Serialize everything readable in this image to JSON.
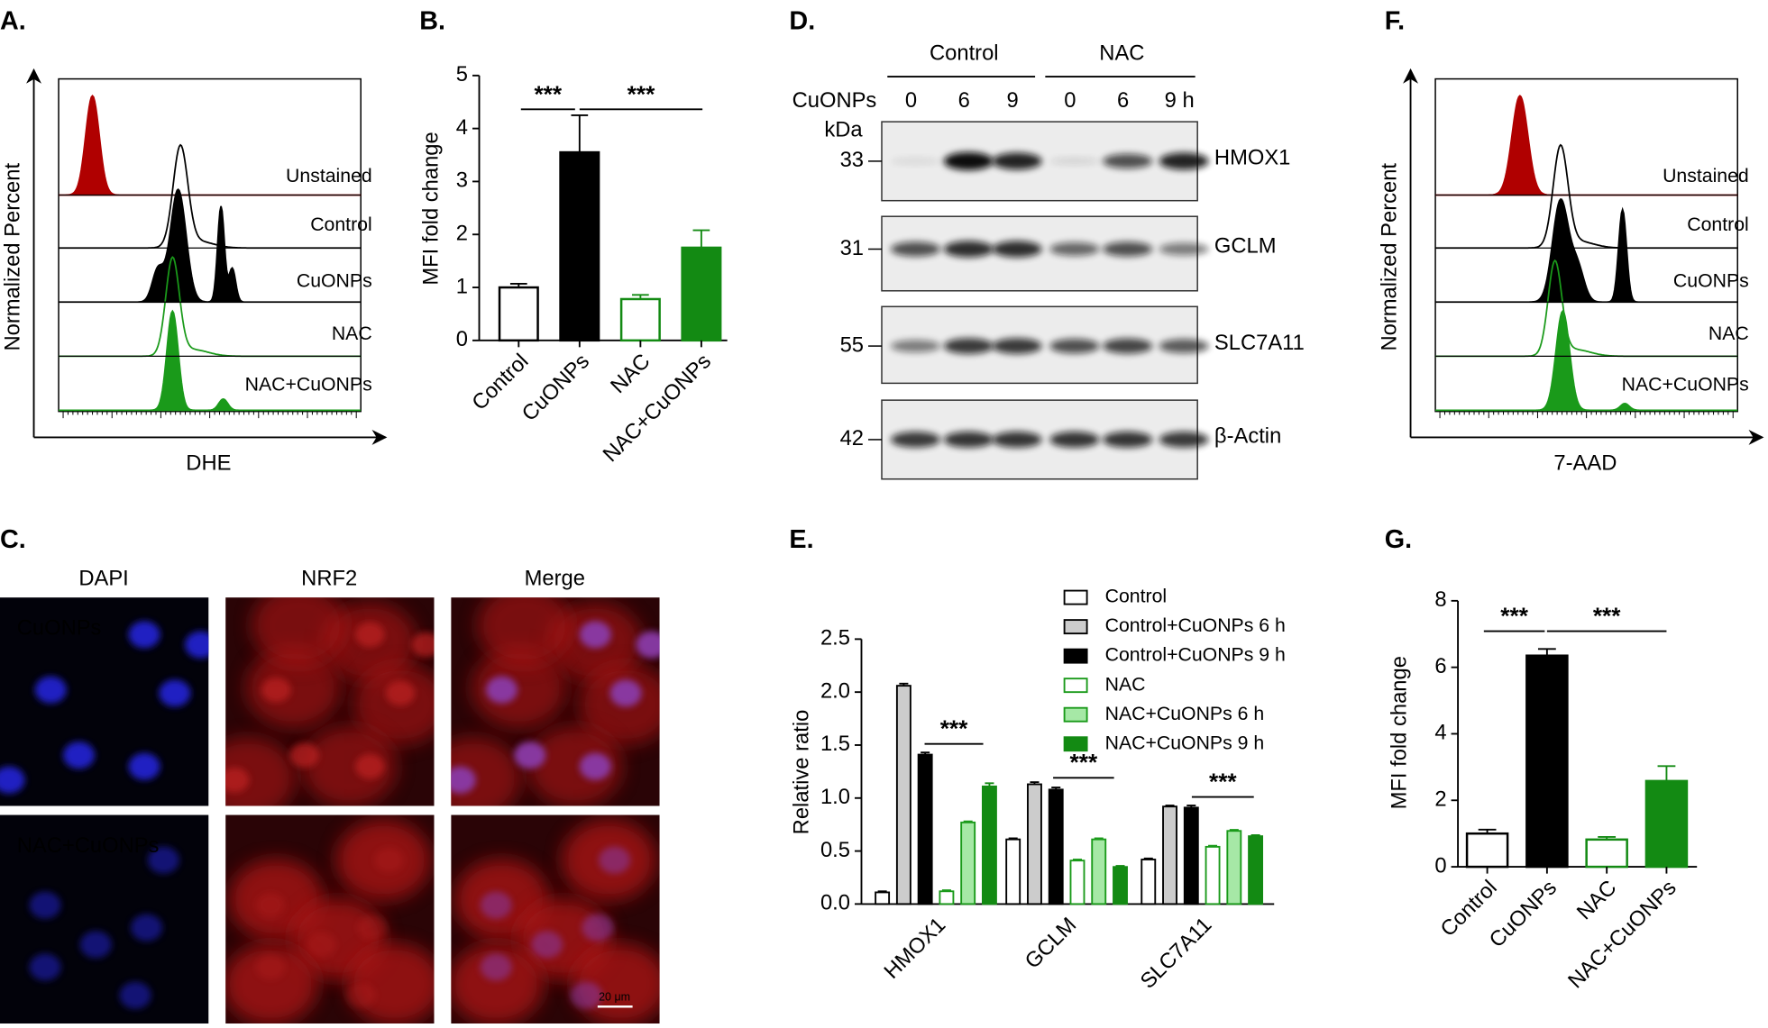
{
  "panel_a": {
    "label": "A.",
    "ylabel": "Normalized Percent",
    "xlabel": "DHE",
    "tracks": [
      {
        "name": "Unstained",
        "color": "#b00000"
      },
      {
        "name": "Control",
        "color": "#bbbbbb"
      },
      {
        "name": "CuONPs",
        "color": "#000000"
      },
      {
        "name": "NAC",
        "color": "#88cc88"
      },
      {
        "name": "NAC+CuONPs",
        "color": "#1a9a1a"
      }
    ]
  },
  "panel_c": {
    "label": "C.",
    "columns": [
      {
        "name": "DAPI",
        "color": "#2b2bd0"
      },
      {
        "name": "NRF2",
        "color": "#d01010"
      },
      {
        "name": "Merge",
        "color": "#000000"
      }
    ],
    "rows": [
      "CuONPs",
      "NAC+CuONPs"
    ],
    "scale_bar": "20 μm"
  },
  "panel_d": {
    "label": "D.",
    "groups": [
      "Control",
      "NAC"
    ],
    "treatment": "CuONPs",
    "lanes": [
      "0",
      "6",
      "9",
      "0",
      "6",
      "9 h"
    ],
    "mw_unit": "kDa",
    "blots": [
      {
        "protein": "HMOX1",
        "mw": 33
      },
      {
        "protein": "GCLM",
        "mw": 31
      },
      {
        "protein": "SLC7A11",
        "mw": 55
      },
      {
        "protein": "β-Actin",
        "mw": 42
      }
    ]
  },
  "panel_f": {
    "label": "F.",
    "ylabel": "Normalized Percent",
    "xlabel": "7-AAD",
    "tracks": [
      {
        "name": "Unstained",
        "color": "#b00000"
      },
      {
        "name": "Control",
        "color": "#bbbbbb"
      },
      {
        "name": "CuONPs",
        "color": "#000000"
      },
      {
        "name": "NAC",
        "color": "#88cc88"
      },
      {
        "name": "NAC+CuONPs",
        "color": "#1a9a1a"
      }
    ]
  },
  "chart_data": [
    {
      "type": "bar",
      "panel": "B.",
      "ylabel": "MFI fold change",
      "categories": [
        "Control",
        "CuONPs",
        "NAC",
        "NAC+CuONPs"
      ],
      "values": [
        1.0,
        3.55,
        0.78,
        1.75
      ],
      "errors": [
        0.07,
        0.7,
        0.08,
        0.33
      ],
      "colors": [
        "#ffffff",
        "#000000",
        "#ffffff",
        "#138a13"
      ],
      "edgecolors": [
        "#000000",
        "#000000",
        "#138a13",
        "#138a13"
      ],
      "ylim": [
        0,
        5
      ],
      "yticks": [
        0,
        1,
        2,
        3,
        4,
        5
      ],
      "annotations": [
        "***",
        "***"
      ]
    },
    {
      "type": "grouped_bar",
      "panel": "E.",
      "ylabel": "Relative ratio",
      "categories": [
        "HMOX1",
        "GCLM",
        "SLC7A11"
      ],
      "series": [
        {
          "name": "Control",
          "color": "#ffffff",
          "edgecolor": "#000000",
          "values": [
            0.11,
            0.61,
            0.42
          ],
          "errors": [
            0.01,
            0.01,
            0.01
          ]
        },
        {
          "name": "Control+CuONPs 6 h",
          "color": "#cccccc",
          "edgecolor": "#000000",
          "values": [
            2.06,
            1.13,
            0.92
          ],
          "errors": [
            0.02,
            0.02,
            0.01
          ]
        },
        {
          "name": "Control+CuONPs 9 h",
          "color": "#000000",
          "edgecolor": "#000000",
          "values": [
            1.41,
            1.08,
            0.91
          ],
          "errors": [
            0.02,
            0.02,
            0.02
          ]
        },
        {
          "name": "NAC",
          "color": "#ffffff",
          "edgecolor": "#1a9a1a",
          "values": [
            0.12,
            0.41,
            0.54
          ],
          "errors": [
            0.01,
            0.01,
            0.01
          ]
        },
        {
          "name": "NAC+CuONPs 6 h",
          "color": "#a6e8a6",
          "edgecolor": "#1a9a1a",
          "values": [
            0.77,
            0.61,
            0.69
          ],
          "errors": [
            0.01,
            0.01,
            0.01
          ]
        },
        {
          "name": "NAC+CuONPs 9 h",
          "color": "#138a13",
          "edgecolor": "#138a13",
          "values": [
            1.11,
            0.35,
            0.64
          ],
          "errors": [
            0.03,
            0.01,
            0.01
          ]
        }
      ],
      "ylim": [
        0,
        2.5
      ],
      "yticks": [
        {
          "value": 0,
          "label": "0.0"
        },
        0.5,
        {
          "value": 1,
          "label": "1.0"
        },
        1.5,
        {
          "value": 2,
          "label": "2.0"
        },
        2.5
      ],
      "annotations": [
        "***",
        "***",
        "***"
      ]
    },
    {
      "type": "bar",
      "panel": "G.",
      "ylabel": "MFI fold change",
      "categories": [
        "Control",
        "CuONPs",
        "NAC",
        "NAC+CuONPs"
      ],
      "values": [
        1.0,
        6.35,
        0.82,
        2.58
      ],
      "errors": [
        0.12,
        0.2,
        0.08,
        0.45
      ],
      "colors": [
        "#ffffff",
        "#000000",
        "#ffffff",
        "#138a13"
      ],
      "edgecolors": [
        "#000000",
        "#000000",
        "#138a13",
        "#138a13"
      ],
      "ylim": [
        0,
        8
      ],
      "yticks": [
        0,
        2,
        4,
        6,
        8
      ],
      "annotations": [
        "***",
        "***"
      ]
    }
  ]
}
